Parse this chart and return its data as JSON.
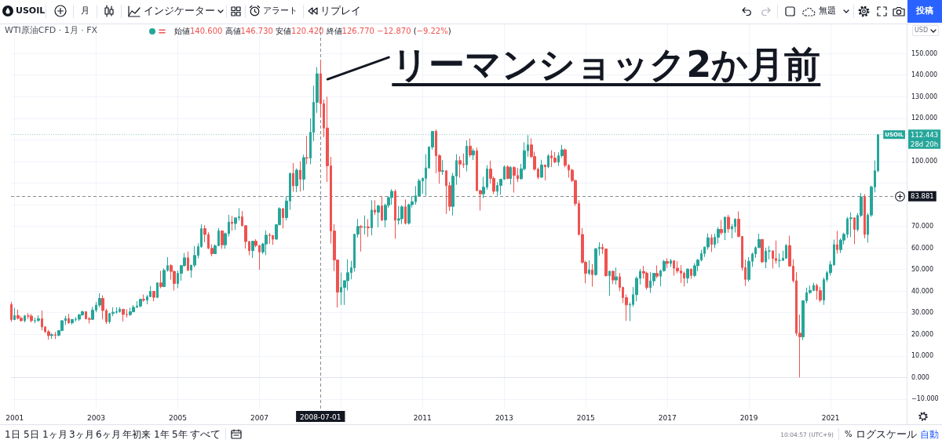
{
  "chart_data": {
    "type": "candlestick",
    "title": "WTI原油CFD · 1月 · FX",
    "subtitle": "始値140.600 高値146.730 安値120.420 終値126.770 −12.870 (−9.22%)",
    "x": [
      "2000-12",
      "2001-01",
      "2001-02",
      "2001-03",
      "2001-04",
      "2001-05",
      "2001-06",
      "2001-07",
      "2001-08",
      "2001-09",
      "2001-10",
      "2001-11",
      "2001-12",
      "2002-01",
      "2002-02",
      "2002-03",
      "2002-04",
      "2002-05",
      "2002-06",
      "2002-07",
      "2002-08",
      "2002-09",
      "2002-10",
      "2002-11",
      "2002-12",
      "2003-01",
      "2003-02",
      "2003-03",
      "2003-04",
      "2003-05",
      "2003-06",
      "2003-07",
      "2003-08",
      "2003-09",
      "2003-10",
      "2003-11",
      "2003-12",
      "2004-01",
      "2004-02",
      "2004-03",
      "2004-04",
      "2004-05",
      "2004-06",
      "2004-07",
      "2004-08",
      "2004-09",
      "2004-10",
      "2004-11",
      "2004-12",
      "2005-01",
      "2005-02",
      "2005-03",
      "2005-04",
      "2005-05",
      "2005-06",
      "2005-07",
      "2005-08",
      "2005-09",
      "2005-10",
      "2005-11",
      "2005-12",
      "2006-01",
      "2006-02",
      "2006-03",
      "2006-04",
      "2006-05",
      "2006-06",
      "2006-07",
      "2006-08",
      "2006-09",
      "2006-10",
      "2006-11",
      "2006-12",
      "2007-01",
      "2007-02",
      "2007-03",
      "2007-04",
      "2007-05",
      "2007-06",
      "2007-07",
      "2007-08",
      "2007-09",
      "2007-10",
      "2007-11",
      "2007-12",
      "2008-01",
      "2008-02",
      "2008-03",
      "2008-04",
      "2008-05",
      "2008-06",
      "2008-07",
      "2008-08",
      "2008-09",
      "2008-10",
      "2008-11",
      "2008-12",
      "2009-01",
      "2009-02",
      "2009-03",
      "2009-04",
      "2009-05",
      "2009-06",
      "2009-07",
      "2009-08",
      "2009-09",
      "2009-10",
      "2009-11",
      "2009-12",
      "2010-01",
      "2010-02",
      "2010-03",
      "2010-04",
      "2010-05",
      "2010-06",
      "2010-07",
      "2010-08",
      "2010-09",
      "2010-10",
      "2010-11",
      "2010-12",
      "2011-01",
      "2011-02",
      "2011-03",
      "2011-04",
      "2011-05",
      "2011-06",
      "2011-07",
      "2011-08",
      "2011-09",
      "2011-10",
      "2011-11",
      "2011-12",
      "2012-01",
      "2012-02",
      "2012-03",
      "2012-04",
      "2012-05",
      "2012-06",
      "2012-07",
      "2012-08",
      "2012-09",
      "2012-10",
      "2012-11",
      "2012-12",
      "2013-01",
      "2013-02",
      "2013-03",
      "2013-04",
      "2013-05",
      "2013-06",
      "2013-07",
      "2013-08",
      "2013-09",
      "2013-10",
      "2013-11",
      "2013-12",
      "2014-01",
      "2014-02",
      "2014-03",
      "2014-04",
      "2014-05",
      "2014-06",
      "2014-07",
      "2014-08",
      "2014-09",
      "2014-10",
      "2014-11",
      "2014-12",
      "2015-01",
      "2015-02",
      "2015-03",
      "2015-04",
      "2015-05",
      "2015-06",
      "2015-07",
      "2015-08",
      "2015-09",
      "2015-10",
      "2015-11",
      "2015-12",
      "2016-01",
      "2016-02",
      "2016-03",
      "2016-04",
      "2016-05",
      "2016-06",
      "2016-07",
      "2016-08",
      "2016-09",
      "2016-10",
      "2016-11",
      "2016-12",
      "2017-01",
      "2017-02",
      "2017-03",
      "2017-04",
      "2017-05",
      "2017-06",
      "2017-07",
      "2017-08",
      "2017-09",
      "2017-10",
      "2017-11",
      "2017-12",
      "2018-01",
      "2018-02",
      "2018-03",
      "2018-04",
      "2018-05",
      "2018-06",
      "2018-07",
      "2018-08",
      "2018-09",
      "2018-10",
      "2018-11",
      "2018-12",
      "2019-01",
      "2019-02",
      "2019-03",
      "2019-04",
      "2019-05",
      "2019-06",
      "2019-07",
      "2019-08",
      "2019-09",
      "2019-10",
      "2019-11",
      "2019-12",
      "2020-01",
      "2020-02",
      "2020-03",
      "2020-04",
      "2020-05",
      "2020-06",
      "2020-07",
      "2020-08",
      "2020-09",
      "2020-10",
      "2020-11",
      "2020-12",
      "2021-01",
      "2021-02",
      "2021-03",
      "2021-04",
      "2021-05",
      "2021-06",
      "2021-07",
      "2021-08",
      "2021-09",
      "2021-10",
      "2021-11",
      "2021-12",
      "2022-01",
      "2022-02",
      "2022-03"
    ],
    "ohlc": [
      [
        33.8,
        35.0,
        25.8,
        26.8
      ],
      [
        26.8,
        32.2,
        26.5,
        28.7
      ],
      [
        28.7,
        31.4,
        26.8,
        27.4
      ],
      [
        27.4,
        28.3,
        25.8,
        26.3
      ],
      [
        26.3,
        29.0,
        25.5,
        28.5
      ],
      [
        28.5,
        29.8,
        27.0,
        28.4
      ],
      [
        28.4,
        29.4,
        25.5,
        26.3
      ],
      [
        26.3,
        27.6,
        25.1,
        26.4
      ],
      [
        26.4,
        28.8,
        25.7,
        27.2
      ],
      [
        27.2,
        31.0,
        21.8,
        23.4
      ],
      [
        23.4,
        23.8,
        20.6,
        21.2
      ],
      [
        21.2,
        22.0,
        17.5,
        19.4
      ],
      [
        19.4,
        20.5,
        17.9,
        19.8
      ],
      [
        19.8,
        21.1,
        17.8,
        19.5
      ],
      [
        19.5,
        22.0,
        19.0,
        21.7
      ],
      [
        21.7,
        26.5,
        21.5,
        26.3
      ],
      [
        26.3,
        28.5,
        24.3,
        27.3
      ],
      [
        27.3,
        29.4,
        24.8,
        25.3
      ],
      [
        25.3,
        26.9,
        24.5,
        26.9
      ],
      [
        26.9,
        27.9,
        25.9,
        27.0
      ],
      [
        27.0,
        29.4,
        26.1,
        29.0
      ],
      [
        29.0,
        30.8,
        28.5,
        30.5
      ],
      [
        30.5,
        30.6,
        26.8,
        27.2
      ],
      [
        27.2,
        28.0,
        25.0,
        26.9
      ],
      [
        26.9,
        32.7,
        26.7,
        31.2
      ],
      [
        31.2,
        35.0,
        30.2,
        33.5
      ],
      [
        33.5,
        39.0,
        32.5,
        36.6
      ],
      [
        36.6,
        38.0,
        26.9,
        31.0
      ],
      [
        31.0,
        31.8,
        24.8,
        25.8
      ],
      [
        25.8,
        29.9,
        25.0,
        29.6
      ],
      [
        29.6,
        32.5,
        28.4,
        30.2
      ],
      [
        30.2,
        32.5,
        29.5,
        30.5
      ],
      [
        30.5,
        32.6,
        30.0,
        31.6
      ],
      [
        31.6,
        31.7,
        26.0,
        29.2
      ],
      [
        29.2,
        31.6,
        27.7,
        29.1
      ],
      [
        29.1,
        32.3,
        28.5,
        30.4
      ],
      [
        30.4,
        33.5,
        30.2,
        32.5
      ],
      [
        32.5,
        35.3,
        32.2,
        33.1
      ],
      [
        33.1,
        36.5,
        32.4,
        36.2
      ],
      [
        36.2,
        38.4,
        35.0,
        35.8
      ],
      [
        35.8,
        38.2,
        33.9,
        37.4
      ],
      [
        37.4,
        42.3,
        37.2,
        39.9
      ],
      [
        39.9,
        40.0,
        35.3,
        37.1
      ],
      [
        37.1,
        43.9,
        36.7,
        43.8
      ],
      [
        43.8,
        49.4,
        41.3,
        42.1
      ],
      [
        42.1,
        50.5,
        41.8,
        49.6
      ],
      [
        49.6,
        55.7,
        49.0,
        51.8
      ],
      [
        51.8,
        52.5,
        45.3,
        49.1
      ],
      [
        49.1,
        49.5,
        40.3,
        43.5
      ],
      [
        43.5,
        49.5,
        41.3,
        48.2
      ],
      [
        48.2,
        52.1,
        44.8,
        51.8
      ],
      [
        51.8,
        57.6,
        51.2,
        55.4
      ],
      [
        55.4,
        58.3,
        49.2,
        49.7
      ],
      [
        49.7,
        52.1,
        46.2,
        52.0
      ],
      [
        52.0,
        60.9,
        51.0,
        56.5
      ],
      [
        56.5,
        62.1,
        55.1,
        60.6
      ],
      [
        60.6,
        70.9,
        60.0,
        68.9
      ],
      [
        68.9,
        70.5,
        62.6,
        66.2
      ],
      [
        66.2,
        67.2,
        59.4,
        59.8
      ],
      [
        59.8,
        61.6,
        56.1,
        57.3
      ],
      [
        57.3,
        61.6,
        57.2,
        61.0
      ],
      [
        61.0,
        69.2,
        60.9,
        67.9
      ],
      [
        67.9,
        68.0,
        59.5,
        61.4
      ],
      [
        61.4,
        67.1,
        59.6,
        66.6
      ],
      [
        66.6,
        75.3,
        65.3,
        71.9
      ],
      [
        71.9,
        74.8,
        68.0,
        71.3
      ],
      [
        71.3,
        74.0,
        68.3,
        73.9
      ],
      [
        73.9,
        78.4,
        72.6,
        74.4
      ],
      [
        74.4,
        77.0,
        69.9,
        70.3
      ],
      [
        70.3,
        70.3,
        59.6,
        62.9
      ],
      [
        62.9,
        63.3,
        56.6,
        58.7
      ],
      [
        58.7,
        63.3,
        55.3,
        63.1
      ],
      [
        63.1,
        64.0,
        60.3,
        61.1
      ],
      [
        61.1,
        61.2,
        49.9,
        58.1
      ],
      [
        58.1,
        62.3,
        57.2,
        61.8
      ],
      [
        61.8,
        68.1,
        56.6,
        65.9
      ],
      [
        65.9,
        66.9,
        61.9,
        65.7
      ],
      [
        65.7,
        66.0,
        61.4,
        64.0
      ],
      [
        64.0,
        71.0,
        64.0,
        70.7
      ],
      [
        70.7,
        78.8,
        70.5,
        78.2
      ],
      [
        78.2,
        78.3,
        69.0,
        74.0
      ],
      [
        74.0,
        83.9,
        72.7,
        81.7
      ],
      [
        81.7,
        94.8,
        77.6,
        94.5
      ],
      [
        94.5,
        99.3,
        86.0,
        88.7
      ],
      [
        88.7,
        96.8,
        85.8,
        96.0
      ],
      [
        96.0,
        100.1,
        86.1,
        91.8
      ],
      [
        91.8,
        103.1,
        86.6,
        101.8
      ],
      [
        101.8,
        111.8,
        98.7,
        101.6
      ],
      [
        101.6,
        119.9,
        98.7,
        113.5
      ],
      [
        113.5,
        135.1,
        109.5,
        127.4
      ],
      [
        127.4,
        143.7,
        122.5,
        140.6
      ],
      [
        140.6,
        146.73,
        120.42,
        126.77
      ],
      [
        126.77,
        128.6,
        111.3,
        115.5
      ],
      [
        115.5,
        130.0,
        90.5,
        98.0
      ],
      [
        98.0,
        102.1,
        62.0,
        67.8
      ],
      [
        67.8,
        71.0,
        49.2,
        54.4
      ],
      [
        54.4,
        54.6,
        32.4,
        39.5
      ],
      [
        39.5,
        48.6,
        33.6,
        41.7
      ],
      [
        41.7,
        45.0,
        33.6,
        44.8
      ],
      [
        44.8,
        54.7,
        40.3,
        48.5
      ],
      [
        48.5,
        54.0,
        45.5,
        50.8
      ],
      [
        50.8,
        66.6,
        49.0,
        66.3
      ],
      [
        66.3,
        73.4,
        64.7,
        69.9
      ],
      [
        69.9,
        70.6,
        58.3,
        69.5
      ],
      [
        69.5,
        75.0,
        66.2,
        69.7
      ],
      [
        69.7,
        73.3,
        65.1,
        69.3
      ],
      [
        69.3,
        82.0,
        65.8,
        77.5
      ],
      [
        77.5,
        82.0,
        75.2,
        76.5
      ],
      [
        76.5,
        80.0,
        69.5,
        79.4
      ],
      [
        79.4,
        83.9,
        72.4,
        72.9
      ],
      [
        72.9,
        80.5,
        69.5,
        79.7
      ],
      [
        79.7,
        83.9,
        78.6,
        83.3
      ],
      [
        83.3,
        87.2,
        80.0,
        86.2
      ],
      [
        86.2,
        87.0,
        64.2,
        72.8
      ],
      [
        72.8,
        79.3,
        70.8,
        73.5
      ],
      [
        73.5,
        79.7,
        71.0,
        79.0
      ],
      [
        79.0,
        82.4,
        70.8,
        71.4
      ],
      [
        71.4,
        80.5,
        70.8,
        80.0
      ],
      [
        80.0,
        84.0,
        78.7,
        81.4
      ],
      [
        81.4,
        88.6,
        80.0,
        84.1
      ],
      [
        84.1,
        92.0,
        84.0,
        91.0
      ],
      [
        91.0,
        92.6,
        85.1,
        92.2
      ],
      [
        92.2,
        103.4,
        84.1,
        97.0
      ],
      [
        97.0,
        107.0,
        96.7,
        106.7
      ],
      [
        106.7,
        114.0,
        105.5,
        113.9
      ],
      [
        113.9,
        114.8,
        94.6,
        102.7
      ],
      [
        102.7,
        103.4,
        89.7,
        95.4
      ],
      [
        95.4,
        100.6,
        93.8,
        95.7
      ],
      [
        95.7,
        95.9,
        75.7,
        88.8
      ],
      [
        88.8,
        90.5,
        77.1,
        79.2
      ],
      [
        79.2,
        94.7,
        75.0,
        93.2
      ],
      [
        93.2,
        103.4,
        89.2,
        100.4
      ],
      [
        100.4,
        102.4,
        92.5,
        98.8
      ],
      [
        98.8,
        103.7,
        97.0,
        98.5
      ],
      [
        98.5,
        109.8,
        95.4,
        107.1
      ],
      [
        107.1,
        110.6,
        102.0,
        103.0
      ],
      [
        103.0,
        106.0,
        100.7,
        104.9
      ],
      [
        104.9,
        106.4,
        86.3,
        86.5
      ],
      [
        86.5,
        86.9,
        77.3,
        85.0
      ],
      [
        85.0,
        92.9,
        83.0,
        88.1
      ],
      [
        88.1,
        98.3,
        86.9,
        96.5
      ],
      [
        96.5,
        100.4,
        89.7,
        92.2
      ],
      [
        92.2,
        93.0,
        84.9,
        86.2
      ],
      [
        86.2,
        90.4,
        84.1,
        88.9
      ],
      [
        88.9,
        92.0,
        84.6,
        91.8
      ],
      [
        91.8,
        98.2,
        91.5,
        97.5
      ],
      [
        97.5,
        98.2,
        91.8,
        92.1
      ],
      [
        92.1,
        97.8,
        89.3,
        97.2
      ],
      [
        97.2,
        97.8,
        85.6,
        93.5
      ],
      [
        93.5,
        97.0,
        90.5,
        92.0
      ],
      [
        92.0,
        98.9,
        91.6,
        96.6
      ],
      [
        96.6,
        108.9,
        95.8,
        105.0
      ],
      [
        105.0,
        112.2,
        102.2,
        107.7
      ],
      [
        107.7,
        110.7,
        101.5,
        102.3
      ],
      [
        102.3,
        104.5,
        95.8,
        96.4
      ],
      [
        96.4,
        97.2,
        91.8,
        92.7
      ],
      [
        92.7,
        100.8,
        92.4,
        98.4
      ],
      [
        98.4,
        98.5,
        91.2,
        97.5
      ],
      [
        97.5,
        103.4,
        96.9,
        102.6
      ],
      [
        102.6,
        105.2,
        97.4,
        101.6
      ],
      [
        101.6,
        104.4,
        99.3,
        99.7
      ],
      [
        99.7,
        104.2,
        98.0,
        102.7
      ],
      [
        102.7,
        107.7,
        101.8,
        105.4
      ],
      [
        105.4,
        106.0,
        97.3,
        98.2
      ],
      [
        98.2,
        98.8,
        92.5,
        96.0
      ],
      [
        96.0,
        96.6,
        90.4,
        91.2
      ],
      [
        91.2,
        91.5,
        79.4,
        80.5
      ],
      [
        80.5,
        82.0,
        65.7,
        66.2
      ],
      [
        66.2,
        69.2,
        52.7,
        53.3
      ],
      [
        53.3,
        54.0,
        43.6,
        48.2
      ],
      [
        48.2,
        54.2,
        47.4,
        49.8
      ],
      [
        49.8,
        52.5,
        42.0,
        47.6
      ],
      [
        47.6,
        59.9,
        47.1,
        59.6
      ],
      [
        59.6,
        62.6,
        56.5,
        60.3
      ],
      [
        60.3,
        61.9,
        57.2,
        59.5
      ],
      [
        59.5,
        59.6,
        46.7,
        47.1
      ],
      [
        47.1,
        49.3,
        37.8,
        49.2
      ],
      [
        49.2,
        49.3,
        43.2,
        45.1
      ],
      [
        45.1,
        50.9,
        43.0,
        46.6
      ],
      [
        46.6,
        48.4,
        39.9,
        41.7
      ],
      [
        41.7,
        42.0,
        34.5,
        37.0
      ],
      [
        37.0,
        38.4,
        26.2,
        33.6
      ],
      [
        33.6,
        34.8,
        26.1,
        33.8
      ],
      [
        33.8,
        41.9,
        32.7,
        38.3
      ],
      [
        38.3,
        46.8,
        35.2,
        45.9
      ],
      [
        45.9,
        50.2,
        43.0,
        49.1
      ],
      [
        49.1,
        51.7,
        45.8,
        48.3
      ],
      [
        48.3,
        49.0,
        40.6,
        41.6
      ],
      [
        41.6,
        48.8,
        39.2,
        44.7
      ],
      [
        44.7,
        48.3,
        42.5,
        48.2
      ],
      [
        48.2,
        51.9,
        46.0,
        46.9
      ],
      [
        46.9,
        49.9,
        42.2,
        49.4
      ],
      [
        49.4,
        54.5,
        49.0,
        53.7
      ],
      [
        53.7,
        55.2,
        50.7,
        52.8
      ],
      [
        52.8,
        54.9,
        51.2,
        54.0
      ],
      [
        54.0,
        54.3,
        47.1,
        50.6
      ],
      [
        50.6,
        53.8,
        48.2,
        49.3
      ],
      [
        49.3,
        52.0,
        43.8,
        48.3
      ],
      [
        48.3,
        49.0,
        42.1,
        46.0
      ],
      [
        46.0,
        50.4,
        43.6,
        50.2
      ],
      [
        50.2,
        50.4,
        45.6,
        47.2
      ],
      [
        47.2,
        52.9,
        46.5,
        51.7
      ],
      [
        51.7,
        54.8,
        49.2,
        54.4
      ],
      [
        54.4,
        59.1,
        53.8,
        57.4
      ],
      [
        57.4,
        60.5,
        55.8,
        60.4
      ],
      [
        60.4,
        66.7,
        59.1,
        64.7
      ],
      [
        64.7,
        66.3,
        58.1,
        61.6
      ],
      [
        61.6,
        66.6,
        59.9,
        64.9
      ],
      [
        64.9,
        69.6,
        62.0,
        68.6
      ],
      [
        68.6,
        72.9,
        66.0,
        67.0
      ],
      [
        67.0,
        74.5,
        63.6,
        74.2
      ],
      [
        74.2,
        75.3,
        67.0,
        68.8
      ],
      [
        68.8,
        71.0,
        64.4,
        69.8
      ],
      [
        69.8,
        73.7,
        67.1,
        73.3
      ],
      [
        73.3,
        76.9,
        64.9,
        65.3
      ],
      [
        65.3,
        65.5,
        49.4,
        50.9
      ],
      [
        50.9,
        54.6,
        42.4,
        45.4
      ],
      [
        45.4,
        55.7,
        44.4,
        53.8
      ],
      [
        53.8,
        57.8,
        51.2,
        57.2
      ],
      [
        57.2,
        60.7,
        55.4,
        60.1
      ],
      [
        60.1,
        66.6,
        60.0,
        63.9
      ],
      [
        63.9,
        64.0,
        53.0,
        53.5
      ],
      [
        53.5,
        60.1,
        50.6,
        58.5
      ],
      [
        58.5,
        60.9,
        54.7,
        58.6
      ],
      [
        58.6,
        58.8,
        50.5,
        55.1
      ],
      [
        55.1,
        63.4,
        52.7,
        54.1
      ],
      [
        54.1,
        57.5,
        50.9,
        54.2
      ],
      [
        54.2,
        58.7,
        54.0,
        55.2
      ],
      [
        55.2,
        61.8,
        55.0,
        61.1
      ],
      [
        61.1,
        65.6,
        51.3,
        51.6
      ],
      [
        51.6,
        54.7,
        43.9,
        44.8
      ],
      [
        44.8,
        48.7,
        19.3,
        20.5
      ],
      [
        20.5,
        29.1,
        0.0,
        18.8
      ],
      [
        18.8,
        35.6,
        17.3,
        35.5
      ],
      [
        35.5,
        41.6,
        34.3,
        39.3
      ],
      [
        39.3,
        42.5,
        38.7,
        40.3
      ],
      [
        40.3,
        43.8,
        40.0,
        42.6
      ],
      [
        42.6,
        43.4,
        36.1,
        40.2
      ],
      [
        40.2,
        41.9,
        34.9,
        35.8
      ],
      [
        35.8,
        46.3,
        33.6,
        45.3
      ],
      [
        45.3,
        49.4,
        44.2,
        48.5
      ],
      [
        48.5,
        53.9,
        47.2,
        52.2
      ],
      [
        52.2,
        63.8,
        51.6,
        61.5
      ],
      [
        61.5,
        67.9,
        57.3,
        59.2
      ],
      [
        59.2,
        64.4,
        57.6,
        63.6
      ],
      [
        63.6,
        67.0,
        61.6,
        66.3
      ],
      [
        66.3,
        74.3,
        64.6,
        73.5
      ],
      [
        73.5,
        76.4,
        65.0,
        73.9
      ],
      [
        73.9,
        74.2,
        61.7,
        68.5
      ],
      [
        68.5,
        76.0,
        67.6,
        75.0
      ],
      [
        75.0,
        85.4,
        74.3,
        83.6
      ],
      [
        83.6,
        84.9,
        64.4,
        66.2
      ],
      [
        66.2,
        76.1,
        62.4,
        75.2
      ],
      [
        75.2,
        88.8,
        74.3,
        88.2
      ],
      [
        88.2,
        100.5,
        85.7,
        95.7
      ],
      [
        95.7,
        112.5,
        95.0,
        112.443
      ]
    ],
    "colors": [
      "#ef5350",
      "#26a69a",
      "#ef5350",
      "#ef5350",
      "#26a69a",
      "#ef5350",
      "#ef5350",
      "#26a69a",
      "#26a69a",
      "#ef5350",
      "#ef5350",
      "#ef5350",
      "#26a69a",
      "#ef5350",
      "#26a69a",
      "#26a69a",
      "#26a69a",
      "#ef5350",
      "#26a69a",
      "#26a69a",
      "#26a69a",
      "#26a69a",
      "#ef5350",
      "#ef5350",
      "#26a69a",
      "#26a69a",
      "#26a69a",
      "#ef5350",
      "#ef5350",
      "#26a69a",
      "#26a69a",
      "#26a69a",
      "#26a69a",
      "#ef5350",
      "#ef5350",
      "#26a69a",
      "#26a69a",
      "#26a69a",
      "#26a69a",
      "#ef5350",
      "#26a69a",
      "#26a69a",
      "#ef5350",
      "#26a69a",
      "#ef5350",
      "#26a69a",
      "#26a69a",
      "#ef5350",
      "#ef5350",
      "#26a69a",
      "#26a69a",
      "#26a69a",
      "#ef5350",
      "#26a69a",
      "#26a69a",
      "#26a69a",
      "#26a69a",
      "#ef5350",
      "#ef5350",
      "#ef5350",
      "#26a69a",
      "#26a69a",
      "#ef5350",
      "#26a69a",
      "#26a69a",
      "#ef5350",
      "#26a69a",
      "#26a69a",
      "#ef5350",
      "#ef5350",
      "#ef5350",
      "#26a69a",
      "#ef5350",
      "#ef5350",
      "#26a69a",
      "#26a69a",
      "#ef5350",
      "#ef5350",
      "#26a69a",
      "#26a69a",
      "#ef5350",
      "#26a69a",
      "#26a69a",
      "#ef5350",
      "#26a69a",
      "#ef5350",
      "#26a69a",
      "#ef5350",
      "#26a69a",
      "#26a69a",
      "#26a69a",
      "#ef5350",
      "#ef5350",
      "#ef5350",
      "#ef5350",
      "#ef5350",
      "#ef5350",
      "#26a69a",
      "#26a69a",
      "#26a69a",
      "#26a69a",
      "#26a69a",
      "#26a69a",
      "#ef5350",
      "#26a69a",
      "#ef5350",
      "#26a69a",
      "#ef5350",
      "#26a69a",
      "#ef5350",
      "#26a69a",
      "#26a69a",
      "#26a69a",
      "#ef5350",
      "#26a69a",
      "#26a69a",
      "#ef5350",
      "#26a69a",
      "#26a69a",
      "#26a69a",
      "#26a69a",
      "#26a69a",
      "#26a69a",
      "#26a69a",
      "#26a69a",
      "#ef5350",
      "#ef5350",
      "#26a69a",
      "#ef5350",
      "#ef5350",
      "#26a69a",
      "#26a69a",
      "#ef5350",
      "#ef5350",
      "#26a69a",
      "#ef5350",
      "#26a69a",
      "#ef5350",
      "#ef5350",
      "#26a69a",
      "#26a69a",
      "#ef5350",
      "#ef5350",
      "#26a69a",
      "#26a69a",
      "#26a69a",
      "#ef5350",
      "#26a69a",
      "#ef5350",
      "#ef5350",
      "#26a69a",
      "#26a69a",
      "#26a69a",
      "#ef5350",
      "#ef5350",
      "#ef5350",
      "#26a69a",
      "#ef5350",
      "#26a69a",
      "#ef5350",
      "#ef5350",
      "#26a69a",
      "#26a69a",
      "#ef5350",
      "#ef5350",
      "#ef5350",
      "#ef5350",
      "#ef5350",
      "#ef5350",
      "#ef5350",
      "#26a69a",
      "#ef5350",
      "#26a69a",
      "#26a69a",
      "#ef5350",
      "#ef5350",
      "#26a69a",
      "#ef5350",
      "#26a69a",
      "#ef5350",
      "#ef5350",
      "#ef5350",
      "#26a69a",
      "#26a69a",
      "#26a69a",
      "#26a69a",
      "#ef5350",
      "#ef5350",
      "#26a69a",
      "#26a69a",
      "#ef5350",
      "#26a69a",
      "#26a69a",
      "#ef5350",
      "#26a69a",
      "#ef5350",
      "#ef5350",
      "#ef5350",
      "#ef5350",
      "#26a69a",
      "#ef5350",
      "#26a69a",
      "#26a69a",
      "#26a69a",
      "#26a69a",
      "#26a69a",
      "#ef5350",
      "#26a69a",
      "#26a69a",
      "#ef5350",
      "#26a69a",
      "#ef5350",
      "#26a69a",
      "#26a69a",
      "#ef5350",
      "#ef5350",
      "#ef5350",
      "#26a69a",
      "#26a69a",
      "#26a69a",
      "#26a69a",
      "#ef5350",
      "#26a69a",
      "#26a69a",
      "#ef5350",
      "#ef5350",
      "#26a69a",
      "#26a69a",
      "#26a69a",
      "#ef5350",
      "#ef5350",
      "#ef5350",
      "#ef5350",
      "#26a69a",
      "#26a69a",
      "#26a69a",
      "#26a69a",
      "#ef5350",
      "#ef5350",
      "#26a69a",
      "#26a69a",
      "#26a69a",
      "#26a69a",
      "#ef5350",
      "#26a69a",
      "#26a69a",
      "#26a69a",
      "#26a69a",
      "#ef5350",
      "#26a69a",
      "#26a69a",
      "#ef5350",
      "#26a69a",
      "#26a69a",
      "#26a69a",
      "#26a69a"
    ],
    "xlim": [
      "2000-11-29",
      "2022-11-13"
    ],
    "xticks": [
      "2001",
      "2003",
      "2005",
      "2007",
      {
        "value": "2009",
        "label": null
      },
      "2011",
      "2013",
      "2015",
      "2017",
      "2019",
      "2021"
    ],
    "ylim": [
      -14.4,
      163.5
    ],
    "yticks": [
      {
        "value": -10,
        "label": "−10.000"
      },
      {
        "value": 0,
        "label": "0.000"
      },
      {
        "value": 10,
        "label": "10.000"
      },
      {
        "value": 20,
        "label": "20.000"
      },
      {
        "value": 30,
        "label": "30.000"
      },
      {
        "value": 40,
        "label": "40.000"
      },
      {
        "value": 50,
        "label": "50.000"
      },
      {
        "value": 60,
        "label": "60.000"
      },
      {
        "value": 70,
        "label": "70.000"
      },
      {
        "value": 80,
        "label": null
      },
      {
        "value": 90,
        "label": null
      },
      {
        "value": 100,
        "label": "100.000"
      },
      {
        "value": 110,
        "label": null
      },
      {
        "value": 120,
        "label": "120.000"
      },
      {
        "value": 130,
        "label": "130.000"
      },
      {
        "value": 140,
        "label": "140.000"
      },
      {
        "value": 150,
        "label": "150.000"
      }
    ],
    "grid": true,
    "ref_lines": [
      {
        "axis": "y",
        "value": 112.443,
        "label": "112.443",
        "color": "#26a69a",
        "line_style": "dotted"
      },
      {
        "axis": "y",
        "value": 83.881,
        "label": "83.881",
        "color": "#131722",
        "line_style": "dashed"
      },
      {
        "axis": "x",
        "value": "2008-07-01",
        "label": "2008-07-01",
        "color": "#131722",
        "line_style": "dashed"
      }
    ],
    "annotations": [
      {
        "text": "リーマンショック2か月前",
        "x": "2008-07",
        "y": 140.6
      },
      {
        "text": "USOIL",
        "y": 112.443
      },
      {
        "text": "28d 20h",
        "y": 112.443
      },
      "USOIL",
      "月",
      "インジケーター",
      "アラート",
      "リプレイ",
      "無題",
      "投稿",
      "USD",
      "1日",
      "5日",
      "1ヶ月",
      "3ヶ月",
      "6ヶ月",
      "年初来",
      "1年",
      "5年",
      "すべて",
      "10:04:57 (UTC+9)",
      "%",
      "ログスケール",
      "自動"
    ]
  }
}
